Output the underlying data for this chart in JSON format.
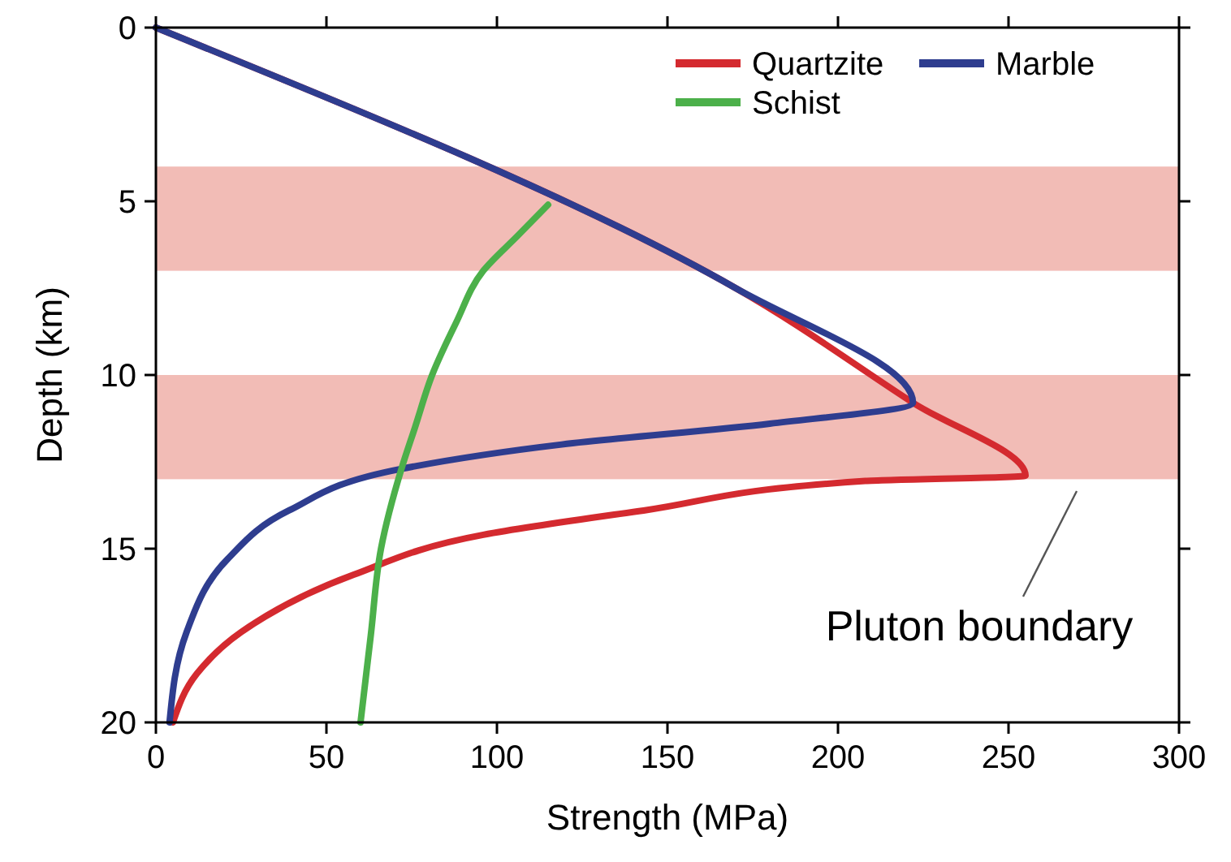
{
  "chart_data": {
    "type": "line",
    "xlabel": "Strength (MPa)",
    "ylabel": "Depth (km)",
    "xlim": [
      0,
      300
    ],
    "xticks": [
      0,
      50,
      100,
      150,
      200,
      250,
      300
    ],
    "ylim": [
      20,
      0
    ],
    "yticks": [
      0,
      5,
      10,
      15,
      20
    ],
    "legend": "top right",
    "grid": false,
    "line_style": "solid",
    "marker": "none",
    "bands": [
      {
        "axis": "y",
        "from": 4,
        "to": 7,
        "color": "#f2bcb6"
      },
      {
        "axis": "y",
        "from": 10,
        "to": 13,
        "color": "#f2bcb6"
      }
    ],
    "annotations": [
      {
        "text": "Pluton boundary",
        "x": 270,
        "y": 13.2
      }
    ],
    "series": [
      {
        "name": "Quartzite",
        "color": "#d42a2f",
        "x": [
          0,
          170,
          222,
          255,
          208,
          143,
          96,
          58,
          25,
          12,
          5
        ],
        "values": [
          0,
          7.5,
          10.8,
          12.9,
          13.05,
          13.9,
          14.6,
          15.75,
          17.4,
          18.6,
          20
        ]
      },
      {
        "name": "Marble",
        "color": "#2e3d8f",
        "x": [
          0,
          170,
          222,
          180,
          119,
          72,
          39,
          21,
          9,
          4
        ],
        "values": [
          0,
          7.5,
          10.8,
          11.4,
          12.0,
          12.7,
          13.9,
          15.3,
          17.4,
          20
        ]
      },
      {
        "name": "Schist",
        "color": "#4cb04a",
        "x": [
          115,
          106,
          96,
          88,
          81,
          76,
          72,
          66,
          63,
          60
        ],
        "values": [
          5.1,
          6,
          7,
          8.5,
          10,
          11.5,
          12.7,
          15,
          17.5,
          20
        ]
      }
    ]
  }
}
